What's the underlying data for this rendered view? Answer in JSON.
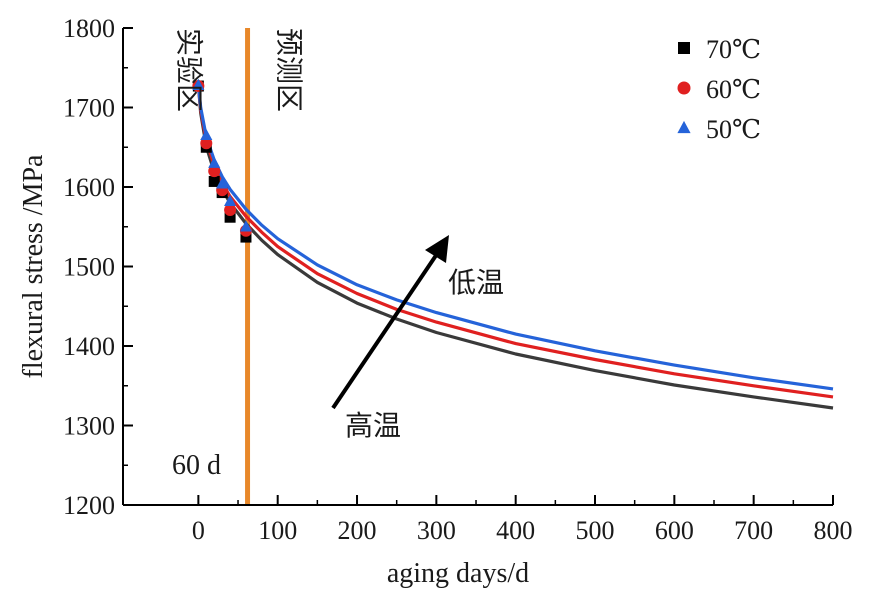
{
  "chart_data": {
    "type": "line",
    "title": "",
    "xlabel": "aging days/d",
    "ylabel": "flexural stress /MPa",
    "xlim": [
      -95,
      800
    ],
    "ylim": [
      1200,
      1800
    ],
    "xticks": [
      0,
      100,
      200,
      300,
      400,
      500,
      600,
      700,
      800
    ],
    "yticks": [
      1200,
      1300,
      1400,
      1500,
      1600,
      1700,
      1800
    ],
    "grid": false,
    "legend_position": "top-right",
    "divider": {
      "x": 62,
      "color": "#e8882a"
    },
    "annotations": {
      "experimental_zone": "实验区",
      "prediction_zone": "预测区",
      "low_temp": "低温",
      "high_temp": "高温",
      "boundary_label": "60 d"
    },
    "series": [
      {
        "name": "70℃",
        "color": "#3a3a3a",
        "marker_color": "#000000",
        "marker": "square",
        "points": {
          "x": [
            0,
            10,
            20,
            30,
            40,
            60
          ],
          "y": [
            1727,
            1650,
            1607,
            1593,
            1562,
            1537
          ]
        },
        "fit": {
          "x": [
            0,
            3,
            10,
            20,
            30,
            40,
            60,
            80,
            100,
            150,
            200,
            250,
            300,
            400,
            500,
            600,
            700,
            800
          ],
          "y": [
            1728,
            1693,
            1651,
            1619,
            1597,
            1580,
            1554,
            1533,
            1515,
            1480,
            1454,
            1434,
            1417,
            1390,
            1369,
            1351,
            1336,
            1322
          ]
        }
      },
      {
        "name": "60℃",
        "color": "#e02020",
        "marker_color": "#e02020",
        "marker": "circle",
        "points": {
          "x": [
            0,
            10,
            20,
            30,
            40,
            60
          ],
          "y": [
            1727,
            1655,
            1620,
            1596,
            1571,
            1545
          ]
        },
        "fit": {
          "x": [
            0,
            3,
            10,
            20,
            30,
            40,
            60,
            80,
            100,
            150,
            200,
            250,
            300,
            400,
            500,
            600,
            700,
            800
          ],
          "y": [
            1728,
            1697,
            1658,
            1627,
            1605,
            1588,
            1563,
            1543,
            1525,
            1491,
            1466,
            1446,
            1430,
            1403,
            1383,
            1365,
            1350,
            1336
          ]
        }
      },
      {
        "name": "50℃",
        "color": "#2563d9",
        "marker_color": "#2563d9",
        "marker": "triangle",
        "points": {
          "x": [
            0,
            10,
            20,
            30,
            40,
            60
          ],
          "y": [
            1728,
            1665,
            1630,
            1604,
            1582,
            1550
          ]
        },
        "fit": {
          "x": [
            0,
            3,
            10,
            20,
            30,
            40,
            60,
            80,
            100,
            150,
            200,
            250,
            300,
            400,
            500,
            600,
            700,
            800
          ],
          "y": [
            1728,
            1700,
            1663,
            1634,
            1613,
            1597,
            1572,
            1552,
            1535,
            1502,
            1477,
            1458,
            1442,
            1415,
            1394,
            1376,
            1360,
            1346
          ]
        }
      }
    ]
  }
}
